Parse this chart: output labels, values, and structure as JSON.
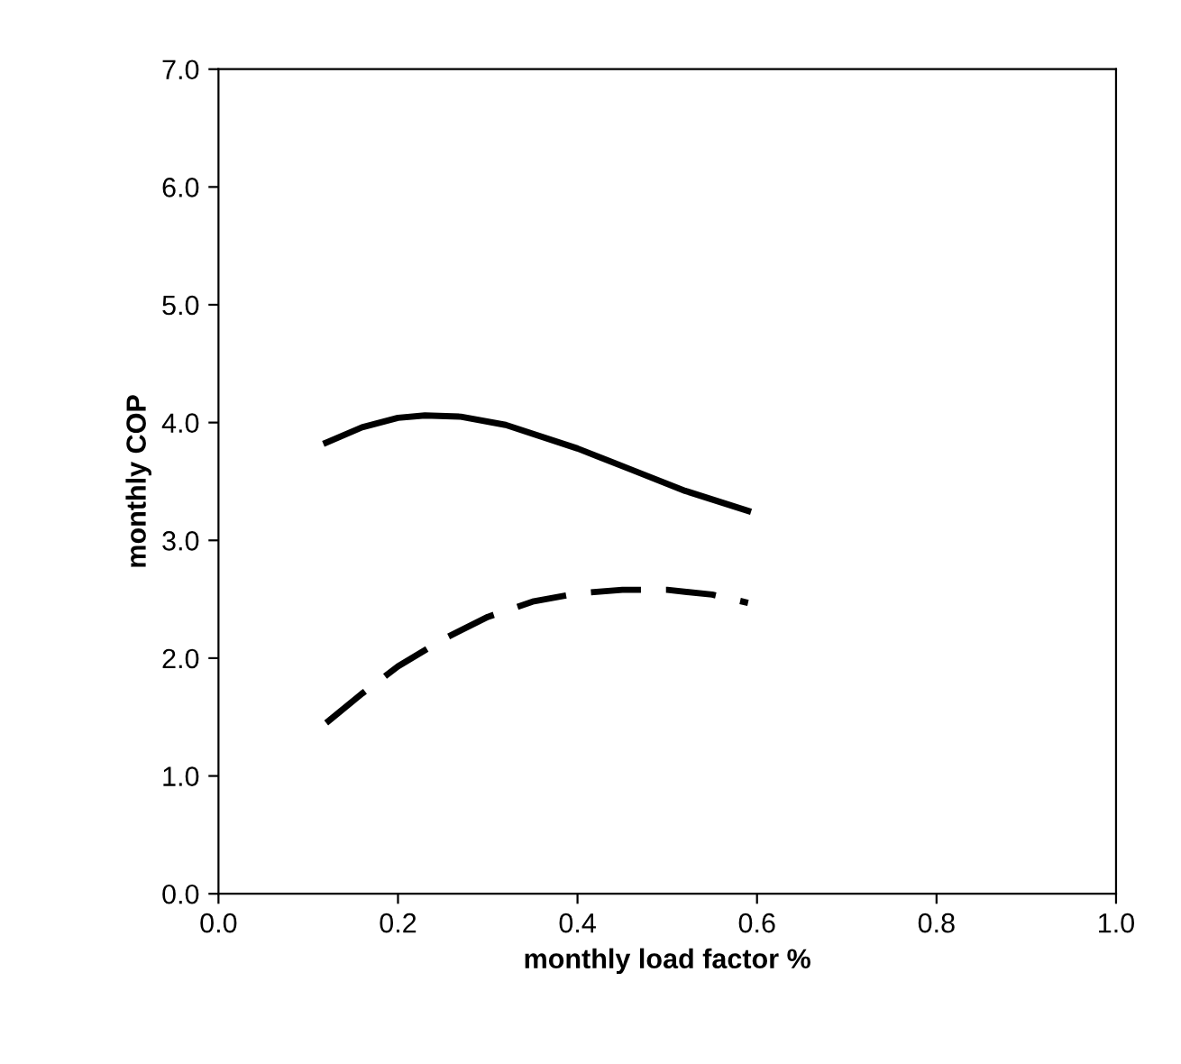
{
  "chart_data": {
    "type": "line",
    "xlabel": "monthly load factor %",
    "ylabel": "monthly COP",
    "xlim": [
      0.0,
      1.0
    ],
    "xticks": [
      {
        "value": 0,
        "label": "0.0"
      },
      {
        "value": 0.2,
        "label": "0.2"
      },
      {
        "value": 0.4,
        "label": "0.4"
      },
      {
        "value": 0.6,
        "label": "0.6"
      },
      {
        "value": 0.8,
        "label": "0.8"
      },
      {
        "value": 1,
        "label": "1.0"
      }
    ],
    "ylim": [
      0.0,
      7.0
    ],
    "yticks": [
      {
        "value": 0,
        "label": "0.0"
      },
      {
        "value": 1,
        "label": "1.0"
      },
      {
        "value": 2,
        "label": "2.0"
      },
      {
        "value": 3,
        "label": "3.0"
      },
      {
        "value": 4,
        "label": "4.0"
      },
      {
        "value": 5,
        "label": "5.0"
      },
      {
        "value": 6,
        "label": "6.0"
      },
      {
        "value": 7,
        "label": "7.0"
      }
    ],
    "grid": false,
    "legend": false,
    "series": [
      {
        "color": "#000000",
        "line_style": "solid",
        "x": [
          0.12,
          0.16,
          0.2,
          0.23,
          0.27,
          0.32,
          0.4,
          0.46,
          0.52,
          0.59
        ],
        "values": [
          3.83,
          3.96,
          4.04,
          4.06,
          4.05,
          3.98,
          3.78,
          3.6,
          3.42,
          3.25
        ]
      },
      {
        "color": "#000000",
        "line_style": "dashed",
        "x": [
          0.12,
          0.16,
          0.2,
          0.25,
          0.3,
          0.35,
          0.4,
          0.45,
          0.5,
          0.55,
          0.59
        ],
        "values": [
          1.45,
          1.7,
          1.93,
          2.16,
          2.35,
          2.48,
          2.55,
          2.58,
          2.58,
          2.54,
          2.47
        ]
      }
    ]
  }
}
